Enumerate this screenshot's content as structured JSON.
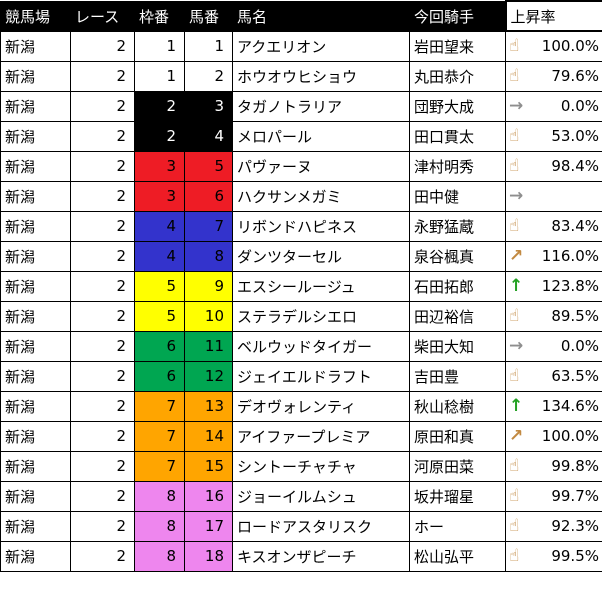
{
  "table": {
    "headers": [
      "競馬場",
      "レース",
      "枠番",
      "馬番",
      "馬名",
      "今回騎手",
      "上昇率"
    ],
    "rows": [
      {
        "track": "新潟",
        "race": "2",
        "bracket": "1",
        "horse_no": "1",
        "bracket_color": "white",
        "horse": "アクエリオン",
        "jockey": "岩田望来",
        "trend": "finger",
        "rate": "100.0%"
      },
      {
        "track": "新潟",
        "race": "2",
        "bracket": "1",
        "horse_no": "2",
        "bracket_color": "white",
        "horse": "ホウオウヒショウ",
        "jockey": "丸田恭介",
        "trend": "finger",
        "rate": "79.6%"
      },
      {
        "track": "新潟",
        "race": "2",
        "bracket": "2",
        "horse_no": "3",
        "bracket_color": "black",
        "horse": "タガノトラリア",
        "jockey": "団野大成",
        "trend": "right",
        "rate": "0.0%"
      },
      {
        "track": "新潟",
        "race": "2",
        "bracket": "2",
        "horse_no": "4",
        "bracket_color": "black",
        "horse": "メロパール",
        "jockey": "田口貫太",
        "trend": "finger",
        "rate": "53.0%"
      },
      {
        "track": "新潟",
        "race": "2",
        "bracket": "3",
        "horse_no": "5",
        "bracket_color": "red",
        "horse": "パヴァーヌ",
        "jockey": "津村明秀",
        "trend": "finger",
        "rate": "98.4%"
      },
      {
        "track": "新潟",
        "race": "2",
        "bracket": "3",
        "horse_no": "6",
        "bracket_color": "red",
        "horse": "ハクサンメガミ",
        "jockey": "田中健",
        "trend": "right",
        "rate": ""
      },
      {
        "track": "新潟",
        "race": "2",
        "bracket": "4",
        "horse_no": "7",
        "bracket_color": "blue",
        "horse": "リボンドハピネス",
        "jockey": "永野猛蔵",
        "trend": "finger",
        "rate": "83.4%"
      },
      {
        "track": "新潟",
        "race": "2",
        "bracket": "4",
        "horse_no": "8",
        "bracket_color": "blue",
        "horse": "ダンツターセル",
        "jockey": "泉谷楓真",
        "trend": "diag",
        "rate": "116.0%"
      },
      {
        "track": "新潟",
        "race": "2",
        "bracket": "5",
        "horse_no": "9",
        "bracket_color": "yellow",
        "horse": "エスシールージュ",
        "jockey": "石田拓郎",
        "trend": "up",
        "rate": "123.8%"
      },
      {
        "track": "新潟",
        "race": "2",
        "bracket": "5",
        "horse_no": "10",
        "bracket_color": "yellow",
        "horse": "ステラデルシエロ",
        "jockey": "田辺裕信",
        "trend": "finger",
        "rate": "89.5%"
      },
      {
        "track": "新潟",
        "race": "2",
        "bracket": "6",
        "horse_no": "11",
        "bracket_color": "green",
        "horse": "ベルウッドタイガー",
        "jockey": "柴田大知",
        "trend": "right",
        "rate": "0.0%"
      },
      {
        "track": "新潟",
        "race": "2",
        "bracket": "6",
        "horse_no": "12",
        "bracket_color": "green",
        "horse": "ジェイエルドラフト",
        "jockey": "吉田豊",
        "trend": "finger",
        "rate": "63.5%"
      },
      {
        "track": "新潟",
        "race": "2",
        "bracket": "7",
        "horse_no": "13",
        "bracket_color": "orange",
        "horse": "デオヴォレンティ",
        "jockey": "秋山稔樹",
        "trend": "up",
        "rate": "134.6%"
      },
      {
        "track": "新潟",
        "race": "2",
        "bracket": "7",
        "horse_no": "14",
        "bracket_color": "orange",
        "horse": "アイファープレミア",
        "jockey": "原田和真",
        "trend": "diag",
        "rate": "100.0%"
      },
      {
        "track": "新潟",
        "race": "2",
        "bracket": "7",
        "horse_no": "15",
        "bracket_color": "orange",
        "horse": "シントーチャチャ",
        "jockey": "河原田菜",
        "trend": "finger",
        "rate": "99.8%"
      },
      {
        "track": "新潟",
        "race": "2",
        "bracket": "8",
        "horse_no": "16",
        "bracket_color": "pink",
        "horse": "ジョーイルムシュ",
        "jockey": "坂井瑠星",
        "trend": "finger",
        "rate": "99.7%"
      },
      {
        "track": "新潟",
        "race": "2",
        "bracket": "8",
        "horse_no": "17",
        "bracket_color": "pink",
        "horse": "ロードアスタリスク",
        "jockey": "ホー",
        "trend": "finger",
        "rate": "92.3%"
      },
      {
        "track": "新潟",
        "race": "2",
        "bracket": "8",
        "horse_no": "18",
        "bracket_color": "pink",
        "horse": "キスオンザピーチ",
        "jockey": "松山弘平",
        "trend": "finger",
        "rate": "99.5%"
      }
    ]
  },
  "bracket_colors": {
    "white": {
      "bg": "#ffffff",
      "fg": "#000000"
    },
    "black": {
      "bg": "#000000",
      "fg": "#ffffff"
    },
    "red": {
      "bg": "#ee1c25",
      "fg": "#000000"
    },
    "blue": {
      "bg": "#3333cc",
      "fg": "#000000"
    },
    "yellow": {
      "bg": "#ffff00",
      "fg": "#000000"
    },
    "green": {
      "bg": "#00a651",
      "fg": "#000000"
    },
    "orange": {
      "bg": "#ffa500",
      "fg": "#000000"
    },
    "pink": {
      "bg": "#ee86ee",
      "fg": "#000000"
    }
  },
  "trend_icons": {
    "finger": {
      "glyph": "☝",
      "color": "#c28a42",
      "name": "finger-up-icon"
    },
    "diag": {
      "glyph": "↗",
      "color": "#c28a42",
      "name": "arrow-diagonal-up-icon"
    },
    "right": {
      "glyph": "→",
      "color": "#8e8e8e",
      "name": "arrow-right-icon"
    },
    "up": {
      "glyph": "↑",
      "color": "#23a123",
      "name": "arrow-up-icon"
    }
  },
  "header_colors": {
    "bg": "#000000",
    "fg": "#ffffff",
    "rate_bg": "#ffffff",
    "rate_fg": "#000000"
  }
}
